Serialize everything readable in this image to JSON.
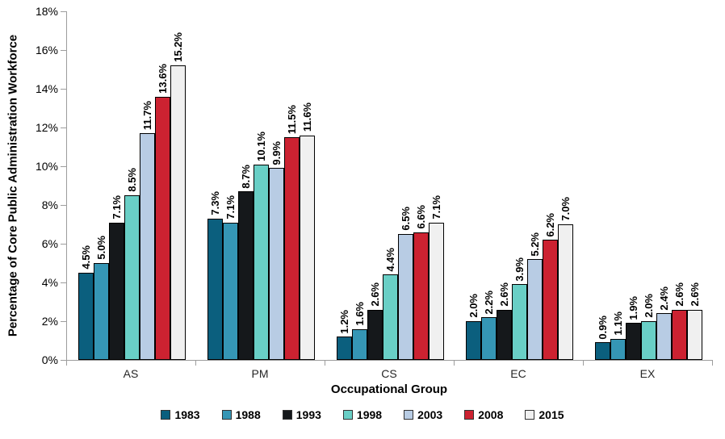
{
  "chart_data": {
    "type": "bar",
    "title": "",
    "categories": [
      "AS",
      "PM",
      "CS",
      "EC",
      "EX"
    ],
    "series": [
      {
        "name": "1983",
        "color": "#0b5f7e",
        "values": [
          4.5,
          7.3,
          1.2,
          2.0,
          0.9
        ]
      },
      {
        "name": "1988",
        "color": "#3596b5",
        "values": [
          5.0,
          7.1,
          1.6,
          2.2,
          1.1
        ]
      },
      {
        "name": "1993",
        "color": "#15181b",
        "values": [
          7.1,
          8.7,
          2.6,
          2.6,
          1.9
        ]
      },
      {
        "name": "1998",
        "color": "#69cfc6",
        "values": [
          8.5,
          10.1,
          4.4,
          3.9,
          2.0
        ]
      },
      {
        "name": "2003",
        "color": "#b8cce4",
        "values": [
          11.7,
          9.9,
          6.5,
          5.2,
          2.4
        ]
      },
      {
        "name": "2008",
        "color": "#cc2231",
        "values": [
          13.6,
          11.5,
          6.6,
          6.2,
          2.6
        ]
      },
      {
        "name": "2015",
        "color": "#f0f0f0",
        "values": [
          15.2,
          11.6,
          7.1,
          7.0,
          2.6
        ]
      }
    ],
    "xlabel": "Occupational Group",
    "ylabel": "Percentage of Core Public Administration Workforce",
    "ylim": [
      0,
      18
    ],
    "ytick_step": 2,
    "ytick_labels": [
      "0%",
      "2%",
      "4%",
      "6%",
      "8%",
      "10%",
      "12%",
      "14%",
      "16%",
      "18%"
    ],
    "data_label_suffix": "%",
    "data_label_decimals": 1,
    "grid": false,
    "legend_position": "bottom",
    "axis_color": "#9d9d9d",
    "bar_border_color": "#000000"
  }
}
